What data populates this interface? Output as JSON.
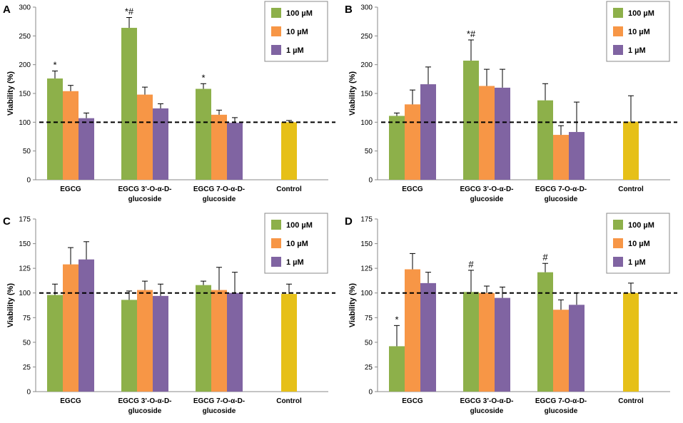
{
  "colors": {
    "100 µM": "#8db04a",
    "10 µM": "#f79646",
    "1 µM": "#8064a2",
    "control": "#e6c018"
  },
  "chart_data": [
    {
      "type": "bar",
      "panel": "A",
      "title": "",
      "ylabel": "Viability (%)",
      "xlabel": "",
      "ylim": [
        0,
        300
      ],
      "yticks": [
        0,
        50,
        100,
        150,
        200,
        250,
        300
      ],
      "reference_line": 100,
      "categories": [
        "EGCG",
        "EGCG 3’-O-α-D-\nglucoside",
        "EGCG 7-O-α-D-\nglucoside",
        "Control"
      ],
      "series": [
        {
          "name": "100 µM",
          "values": [
            176,
            264,
            158,
            null
          ],
          "errors": [
            13,
            18,
            9,
            null
          ],
          "annotations": [
            "*",
            "*#",
            "*",
            ""
          ]
        },
        {
          "name": "10 µM",
          "values": [
            154,
            148,
            113,
            null
          ],
          "errors": [
            10,
            13,
            8,
            null
          ],
          "annotations": [
            "",
            "",
            "",
            ""
          ]
        },
        {
          "name": "1 µM",
          "values": [
            107,
            124,
            99,
            null
          ],
          "errors": [
            9,
            8,
            9,
            null
          ],
          "annotations": [
            "",
            "",
            "",
            ""
          ]
        },
        {
          "name": "Control",
          "values": [
            null,
            null,
            null,
            100
          ],
          "errors": [
            null,
            null,
            null,
            3
          ],
          "annotations": [
            "",
            "",
            "",
            ""
          ]
        }
      ],
      "legend": [
        "100 µM",
        "10 µM",
        "1 µM"
      ]
    },
    {
      "type": "bar",
      "panel": "B",
      "title": "",
      "ylabel": "Viability (%)",
      "xlabel": "",
      "ylim": [
        0,
        300
      ],
      "yticks": [
        0,
        50,
        100,
        150,
        200,
        250,
        300
      ],
      "reference_line": 100,
      "categories": [
        "EGCG",
        "EGCG 3’-O-α-D-\nglucoside",
        "EGCG 7-O-α-D-\nglucoside",
        "Control"
      ],
      "series": [
        {
          "name": "100 µM",
          "values": [
            111,
            207,
            138,
            null
          ],
          "errors": [
            5,
            36,
            29,
            null
          ],
          "annotations": [
            "",
            "*#",
            "",
            ""
          ]
        },
        {
          "name": "10 µM",
          "values": [
            131,
            163,
            78,
            null
          ],
          "errors": [
            25,
            29,
            16,
            null
          ],
          "annotations": [
            "",
            "",
            "",
            ""
          ]
        },
        {
          "name": "1 µM",
          "values": [
            166,
            160,
            83,
            null
          ],
          "errors": [
            30,
            32,
            52,
            null
          ],
          "annotations": [
            "",
            "",
            "",
            ""
          ]
        },
        {
          "name": "Control",
          "values": [
            null,
            null,
            null,
            101
          ],
          "errors": [
            null,
            null,
            null,
            45
          ],
          "annotations": [
            "",
            "",
            "",
            ""
          ]
        }
      ],
      "legend": [
        "100 µM",
        "10 µM",
        "1 µM"
      ]
    },
    {
      "type": "bar",
      "panel": "C",
      "title": "",
      "ylabel": "Viability (%)",
      "xlabel": "",
      "ylim": [
        0,
        175
      ],
      "yticks": [
        0,
        25,
        50,
        75,
        100,
        125,
        150,
        175
      ],
      "reference_line": 100,
      "categories": [
        "EGCG",
        "EGCG 3’-O-α-D-\nglucoside",
        "EGCG 7-O-α-D-\nglucoside",
        "Control"
      ],
      "series": [
        {
          "name": "100 µM",
          "values": [
            98,
            93,
            108,
            null
          ],
          "errors": [
            11,
            9,
            4,
            null
          ],
          "annotations": [
            "",
            "",
            "",
            ""
          ]
        },
        {
          "name": "10 µM",
          "values": [
            129,
            103,
            103,
            null
          ],
          "errors": [
            17,
            9,
            23,
            null
          ],
          "annotations": [
            "",
            "",
            "",
            ""
          ]
        },
        {
          "name": "1 µM",
          "values": [
            134,
            97,
            100,
            null
          ],
          "errors": [
            18,
            12,
            21,
            null
          ],
          "annotations": [
            "",
            "",
            "",
            ""
          ]
        },
        {
          "name": "Control",
          "values": [
            null,
            null,
            null,
            99
          ],
          "errors": [
            null,
            null,
            null,
            10
          ],
          "annotations": [
            "",
            "",
            "",
            ""
          ]
        }
      ],
      "legend": [
        "100 µM",
        "10 µM",
        "1 µM"
      ]
    },
    {
      "type": "bar",
      "panel": "D",
      "title": "",
      "ylabel": "Viability (%)",
      "xlabel": "",
      "ylim": [
        0,
        175
      ],
      "yticks": [
        0,
        25,
        50,
        75,
        100,
        125,
        150,
        175
      ],
      "reference_line": 100,
      "categories": [
        "EGCG",
        "EGCG 3’-O-α-D-\nglucoside",
        "EGCG 7-O-α-D-\nglucoside",
        "Control"
      ],
      "series": [
        {
          "name": "100 µM",
          "values": [
            46,
            101,
            121,
            null
          ],
          "errors": [
            21,
            22,
            9,
            null
          ],
          "annotations": [
            "*",
            "#",
            "#",
            ""
          ]
        },
        {
          "name": "10 µM",
          "values": [
            124,
            100,
            83,
            null
          ],
          "errors": [
            16,
            7,
            10,
            null
          ],
          "annotations": [
            "",
            "",
            "",
            ""
          ]
        },
        {
          "name": "1 µM",
          "values": [
            110,
            95,
            88,
            null
          ],
          "errors": [
            11,
            11,
            12,
            null
          ],
          "annotations": [
            "",
            "",
            "",
            ""
          ]
        },
        {
          "name": "Control",
          "values": [
            null,
            null,
            null,
            100
          ],
          "errors": [
            null,
            null,
            null,
            10
          ],
          "annotations": [
            "",
            "",
            "",
            ""
          ]
        }
      ],
      "legend": [
        "100 µM",
        "10 µM",
        "1 µM"
      ]
    }
  ]
}
